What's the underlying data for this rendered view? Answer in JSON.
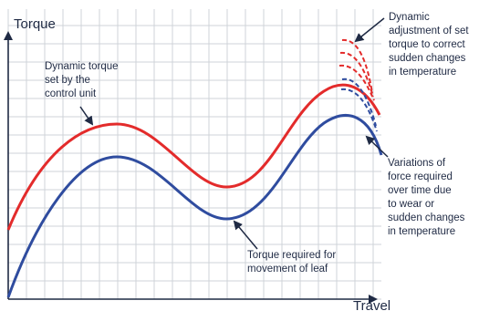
{
  "axes": {
    "y_label": "Torque",
    "x_label": "Travel"
  },
  "annotations": {
    "dynamic_torque": [
      "Dynamic torque",
      "set by the",
      "control  unit"
    ],
    "dynamic_adjustment": [
      "Dynamic",
      "adjustment of set",
      "torque to correct",
      "sudden changes",
      "in temperature"
    ],
    "variations": [
      "Variations of",
      "force required",
      "over time due",
      "to wear or",
      "sudden changes",
      "in temperature"
    ],
    "torque_required": [
      "Torque required for",
      "movement of leaf"
    ]
  },
  "colors": {
    "set_torque": "#e32b2b",
    "required_torque": "#2f4c9f",
    "grid": "#cfd3d8",
    "axis": "#1f2a44",
    "text": "#1f2a44"
  }
}
